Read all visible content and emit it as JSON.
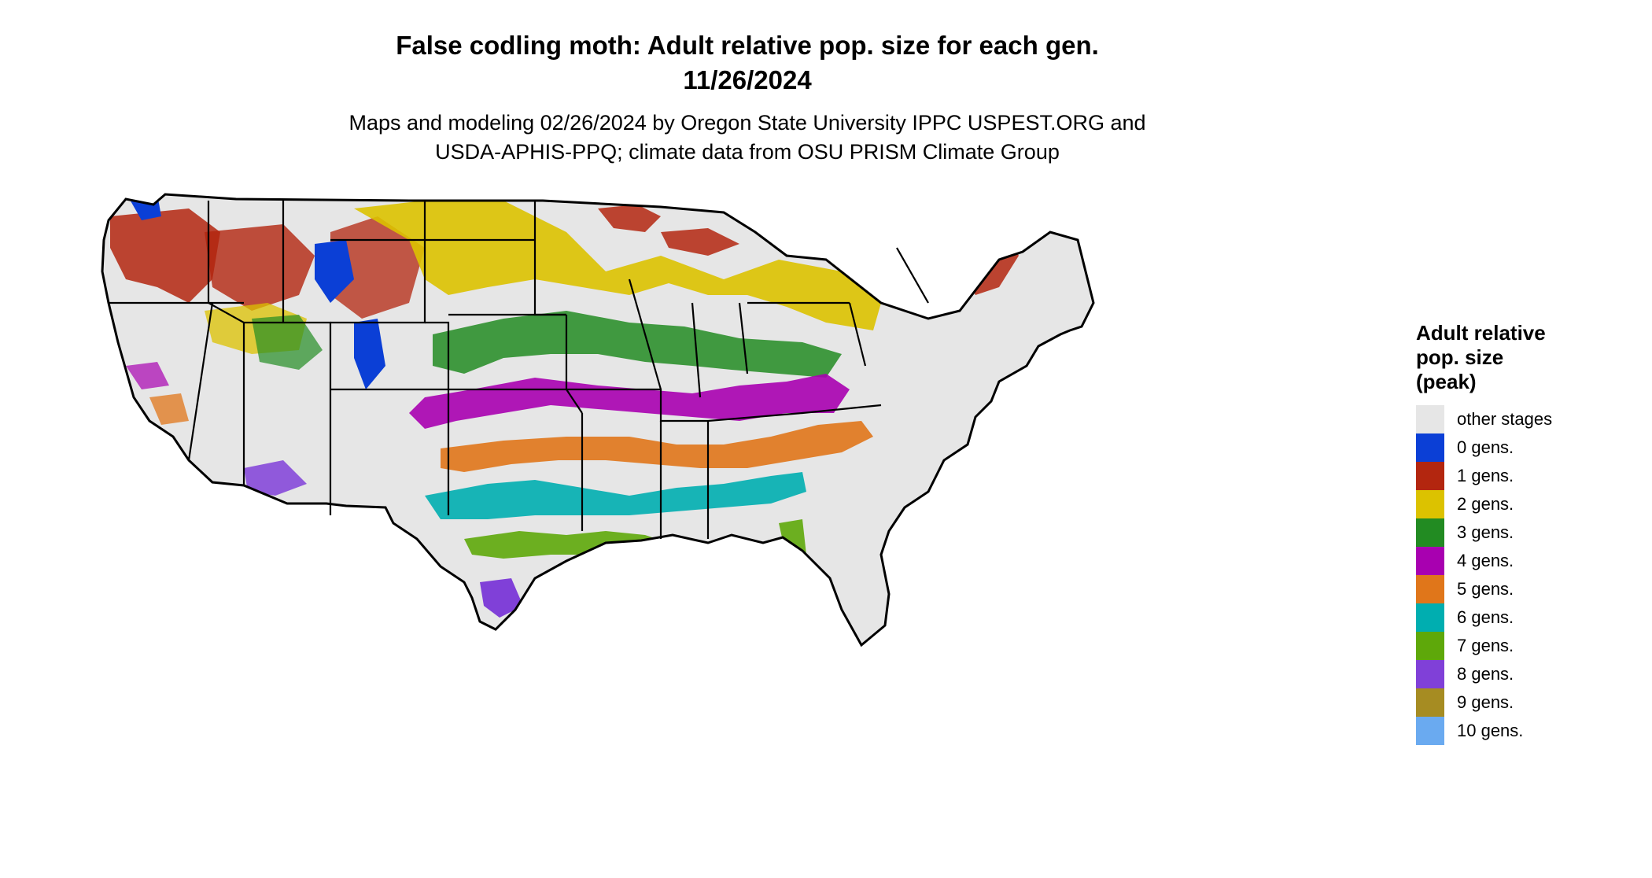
{
  "title": {
    "line1": "False codling moth: Adult relative pop. size for each gen.",
    "line2": "11/26/2024"
  },
  "subtitle": {
    "line1": "Maps and modeling 02/26/2024 by Oregon State University IPPC USPEST.ORG and",
    "line2": "USDA-APHIS-PPQ; climate data from OSU PRISM Climate Group"
  },
  "legend": {
    "title_line1": "Adult relative",
    "title_line2": "pop. size",
    "title_line3": "(peak)",
    "items": [
      {
        "label": "other stages",
        "color": "#e6e6e6"
      },
      {
        "label": "0 gens.",
        "color": "#0b3fd6"
      },
      {
        "label": "1 gens.",
        "color": "#b3260f"
      },
      {
        "label": "2 gens.",
        "color": "#dcc200"
      },
      {
        "label": "3 gens.",
        "color": "#228b22"
      },
      {
        "label": "4 gens.",
        "color": "#a800b0"
      },
      {
        "label": "5 gens.",
        "color": "#e0761a"
      },
      {
        "label": "6 gens.",
        "color": "#00aeb0"
      },
      {
        "label": "7 gens.",
        "color": "#5ea80a"
      },
      {
        "label": "8 gens.",
        "color": "#8040d8"
      },
      {
        "label": "9 gens.",
        "color": "#a68c22"
      },
      {
        "label": "10 gens.",
        "color": "#6aaaf0"
      }
    ]
  },
  "map": {
    "region": "conterminous-united-states",
    "background_color": "#e6e6e6",
    "border_color": "#000000"
  }
}
